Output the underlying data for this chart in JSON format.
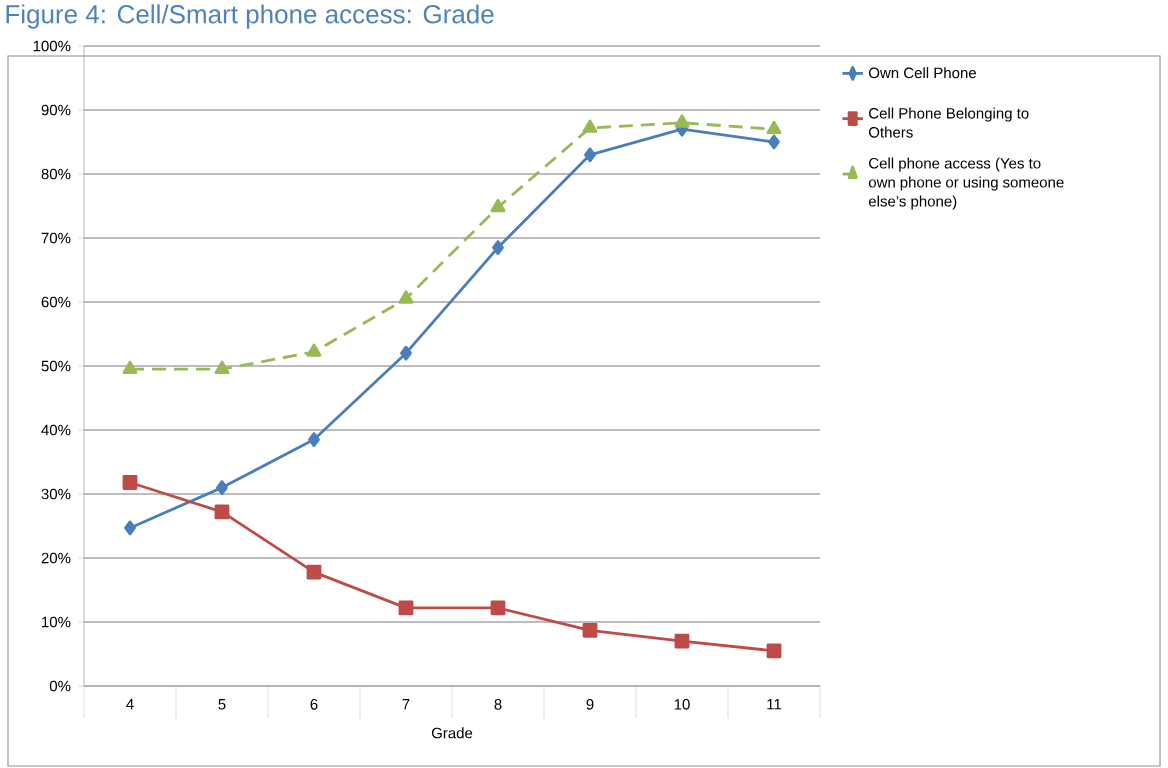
{
  "chart_data": {
    "type": "line",
    "title": "Figure 4: Cell/Smart phone access: Grade",
    "xlabel": "Grade",
    "categories": [
      "4",
      "5",
      "6",
      "7",
      "8",
      "9",
      "10",
      "11"
    ],
    "ylim": [
      0,
      1
    ],
    "yticks": [
      {
        "value": 0,
        "label": "0%"
      },
      {
        "value": 0.1,
        "label": "10%"
      },
      {
        "value": 0.2,
        "label": "20%"
      },
      {
        "value": 0.3,
        "label": "30%"
      },
      {
        "value": 0.4,
        "label": "40%"
      },
      {
        "value": 0.5,
        "label": "50%"
      },
      {
        "value": 0.6,
        "label": "60%"
      },
      {
        "value": 0.7,
        "label": "70%"
      },
      {
        "value": 0.8,
        "label": "80%"
      },
      {
        "value": 0.9,
        "label": "90%"
      },
      {
        "value": 1,
        "label": "100%"
      }
    ],
    "grid": "y",
    "legend": "right",
    "series": [
      {
        "name": "Own Cell Phone",
        "color": "#4a7ebb",
        "marker": "diamond",
        "line_style": "solid",
        "values": [
          0.247,
          0.31,
          0.385,
          0.52,
          0.685,
          0.83,
          0.87,
          0.85
        ]
      },
      {
        "name": "Cell Phone Belonging to Others",
        "color": "#be4b48",
        "marker": "square",
        "line_style": "solid",
        "values": [
          0.318,
          0.272,
          0.178,
          0.122,
          0.122,
          0.087,
          0.07,
          0.055
        ]
      },
      {
        "name": "Cell phone access (Yes to own phone or using someone else’s phone)",
        "color": "#98b954",
        "marker": "triangle",
        "line_style": "dashed",
        "values": [
          0.495,
          0.495,
          0.522,
          0.605,
          0.748,
          0.872,
          0.88,
          0.87
        ]
      }
    ]
  }
}
